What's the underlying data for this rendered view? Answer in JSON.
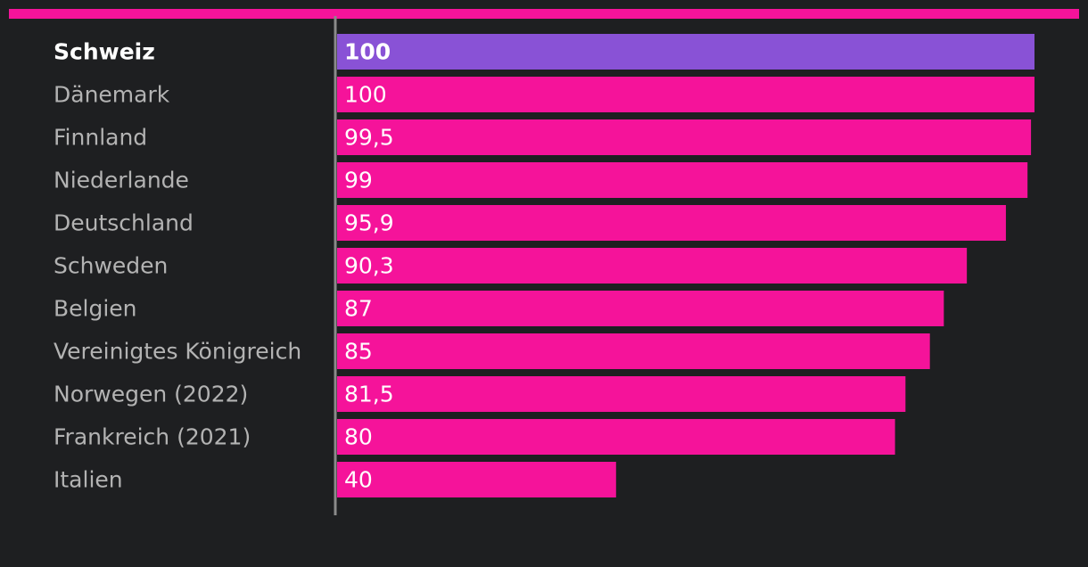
{
  "chart_data": {
    "type": "bar",
    "orientation": "horizontal",
    "categories": [
      "Schweiz",
      "Dänemark",
      "Finnland",
      "Niederlande",
      "Deutschland",
      "Schweden",
      "Belgien",
      "Vereinigtes Königreich",
      "Norwegen (2022)",
      "Frankreich (2021)",
      "Italien"
    ],
    "values": [
      100,
      100,
      99.5,
      99,
      95.9,
      90.3,
      87,
      85,
      81.5,
      80,
      40
    ],
    "value_labels": [
      "100",
      "100",
      "99,5",
      "99",
      "95,9",
      "90,3",
      "87",
      "85",
      "81,5",
      "80",
      "40"
    ],
    "highlight_category": "Schweiz",
    "xlim": [
      0,
      100
    ],
    "grid": false,
    "legend": "none"
  },
  "colors": {
    "background": "#1e1f21",
    "accent": "#f5139a",
    "bar": "#f5139a",
    "highlight_bar": "#8952d6",
    "axis_line": "#8a8a8a",
    "category_text": "#b3b3b3",
    "highlight_text": "#ffffff",
    "value_text": "#ffffff"
  }
}
